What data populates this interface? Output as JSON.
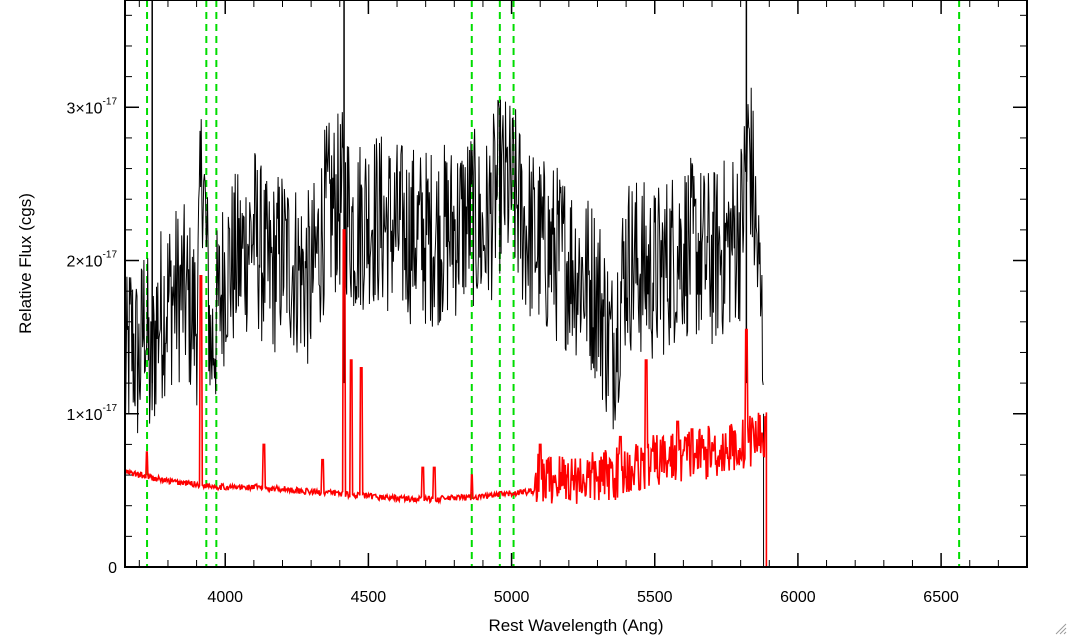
{
  "chart_data": {
    "type": "line",
    "title": "",
    "xlabel": "Rest Wavelength (Ang)",
    "ylabel": "Relative Flux (cgs)",
    "xlim": [
      3650,
      6800
    ],
    "ylim": [
      0,
      3.7e-17
    ],
    "x_ticks": [
      {
        "value": 4000,
        "label": "4000"
      },
      {
        "value": 4500,
        "label": "4500"
      },
      {
        "value": 5000,
        "label": "5000"
      },
      {
        "value": 5500,
        "label": "5500"
      },
      {
        "value": 6000,
        "label": "6000"
      },
      {
        "value": 6500,
        "label": "6500"
      }
    ],
    "x_minor_step": 100,
    "y_ticks": [
      {
        "value": 0,
        "mantissa": "0",
        "exponent": ""
      },
      {
        "value": 1e-17,
        "mantissa": "1×10",
        "exponent": "-17"
      },
      {
        "value": 2e-17,
        "mantissa": "2×10",
        "exponent": "-17"
      },
      {
        "value": 3e-17,
        "mantissa": "3×10",
        "exponent": "-17"
      }
    ],
    "y_minor_step": 2e-18,
    "grid": false,
    "reference_lines": {
      "color": "#00dd00",
      "style": "dashed",
      "x": [
        3727,
        3934,
        3969,
        4861,
        4959,
        5007,
        6563
      ]
    },
    "series": [
      {
        "color": "#000000",
        "description_points": [
          [
            3650,
            1.2e-17
          ],
          [
            3670,
            1.5e-17
          ],
          [
            3700,
            1.3e-17
          ],
          [
            3720,
            1.7e-17
          ],
          [
            3740,
            1.15e-17
          ],
          [
            3760,
            1.6e-17
          ],
          [
            3800,
            1.75e-17
          ],
          [
            3850,
            1.8e-17
          ],
          [
            3900,
            1.6e-17
          ],
          [
            3920,
            2.7e-17
          ],
          [
            3950,
            1.4e-17
          ],
          [
            4000,
            1.95e-17
          ],
          [
            4050,
            2e-17
          ],
          [
            4100,
            2.2e-17
          ],
          [
            4150,
            1.9e-17
          ],
          [
            4200,
            2.05e-17
          ],
          [
            4300,
            1.85e-17
          ],
          [
            4350,
            2.3e-17
          ],
          [
            4415,
            2.4e-17
          ],
          [
            4450,
            2.2e-17
          ],
          [
            4500,
            2.3e-17
          ],
          [
            4600,
            2.2e-17
          ],
          [
            4700,
            2.15e-17
          ],
          [
            4800,
            2.2e-17
          ],
          [
            4861,
            2.3e-17
          ],
          [
            4900,
            2.15e-17
          ],
          [
            4959,
            2.5e-17
          ],
          [
            5007,
            2.45e-17
          ],
          [
            5050,
            2.2e-17
          ],
          [
            5100,
            2.1e-17
          ],
          [
            5200,
            2e-17
          ],
          [
            5300,
            1.8e-17
          ],
          [
            5350,
            1.4e-17
          ],
          [
            5400,
            2e-17
          ],
          [
            5500,
            1.9e-17
          ],
          [
            5600,
            2.1e-17
          ],
          [
            5700,
            2e-17
          ],
          [
            5800,
            2.2e-17
          ],
          [
            5830,
            2.8e-17
          ],
          [
            5860,
            2e-17
          ],
          [
            5880,
            1.4e-17
          ]
        ],
        "noise_amplitude": 6e-18,
        "cutoff_x": 5880
      },
      {
        "color": "#ff0000",
        "description_points": [
          [
            3650,
            6.2e-18
          ],
          [
            3700,
            6e-18
          ],
          [
            3800,
            5.6e-18
          ],
          [
            3900,
            5.4e-18
          ],
          [
            4000,
            5.2e-18
          ],
          [
            4100,
            5.2e-18
          ],
          [
            4200,
            5.1e-18
          ],
          [
            4300,
            4.9e-18
          ],
          [
            4400,
            4.8e-18
          ],
          [
            4500,
            4.6e-18
          ],
          [
            4600,
            4.5e-18
          ],
          [
            4700,
            4.4e-18
          ],
          [
            4800,
            4.5e-18
          ],
          [
            4900,
            4.6e-18
          ],
          [
            5000,
            4.8e-18
          ],
          [
            5100,
            5e-18
          ],
          [
            5200,
            5.1e-18
          ],
          [
            5300,
            5.1e-18
          ],
          [
            5400,
            5.6e-18
          ],
          [
            5500,
            6.2e-18
          ],
          [
            5600,
            6.6e-18
          ],
          [
            5700,
            6.8e-18
          ],
          [
            5800,
            7.2e-18
          ],
          [
            5870,
            8e-18
          ]
        ],
        "spikes": [
          {
            "x": 3727,
            "y": 7.5e-18
          },
          {
            "x": 3915,
            "y": 1.9e-17
          },
          {
            "x": 4135,
            "y": 8e-18
          },
          {
            "x": 4340,
            "y": 7e-18
          },
          {
            "x": 4415,
            "y": 2.2e-17
          },
          {
            "x": 4440,
            "y": 1.35e-17
          },
          {
            "x": 4475,
            "y": 1.3e-17
          },
          {
            "x": 4690,
            "y": 6.5e-18
          },
          {
            "x": 4730,
            "y": 6.5e-18
          },
          {
            "x": 4861,
            "y": 6e-18
          },
          {
            "x": 5100,
            "y": 8e-18
          },
          {
            "x": 5380,
            "y": 8.5e-18
          },
          {
            "x": 5470,
            "y": 1.35e-17
          },
          {
            "x": 5580,
            "y": 9.5e-18
          },
          {
            "x": 5630,
            "y": 9e-18
          },
          {
            "x": 5820,
            "y": 1.55e-17
          }
        ],
        "after_cutoff_y": 0,
        "cutoff_x": 5890
      }
    ]
  }
}
